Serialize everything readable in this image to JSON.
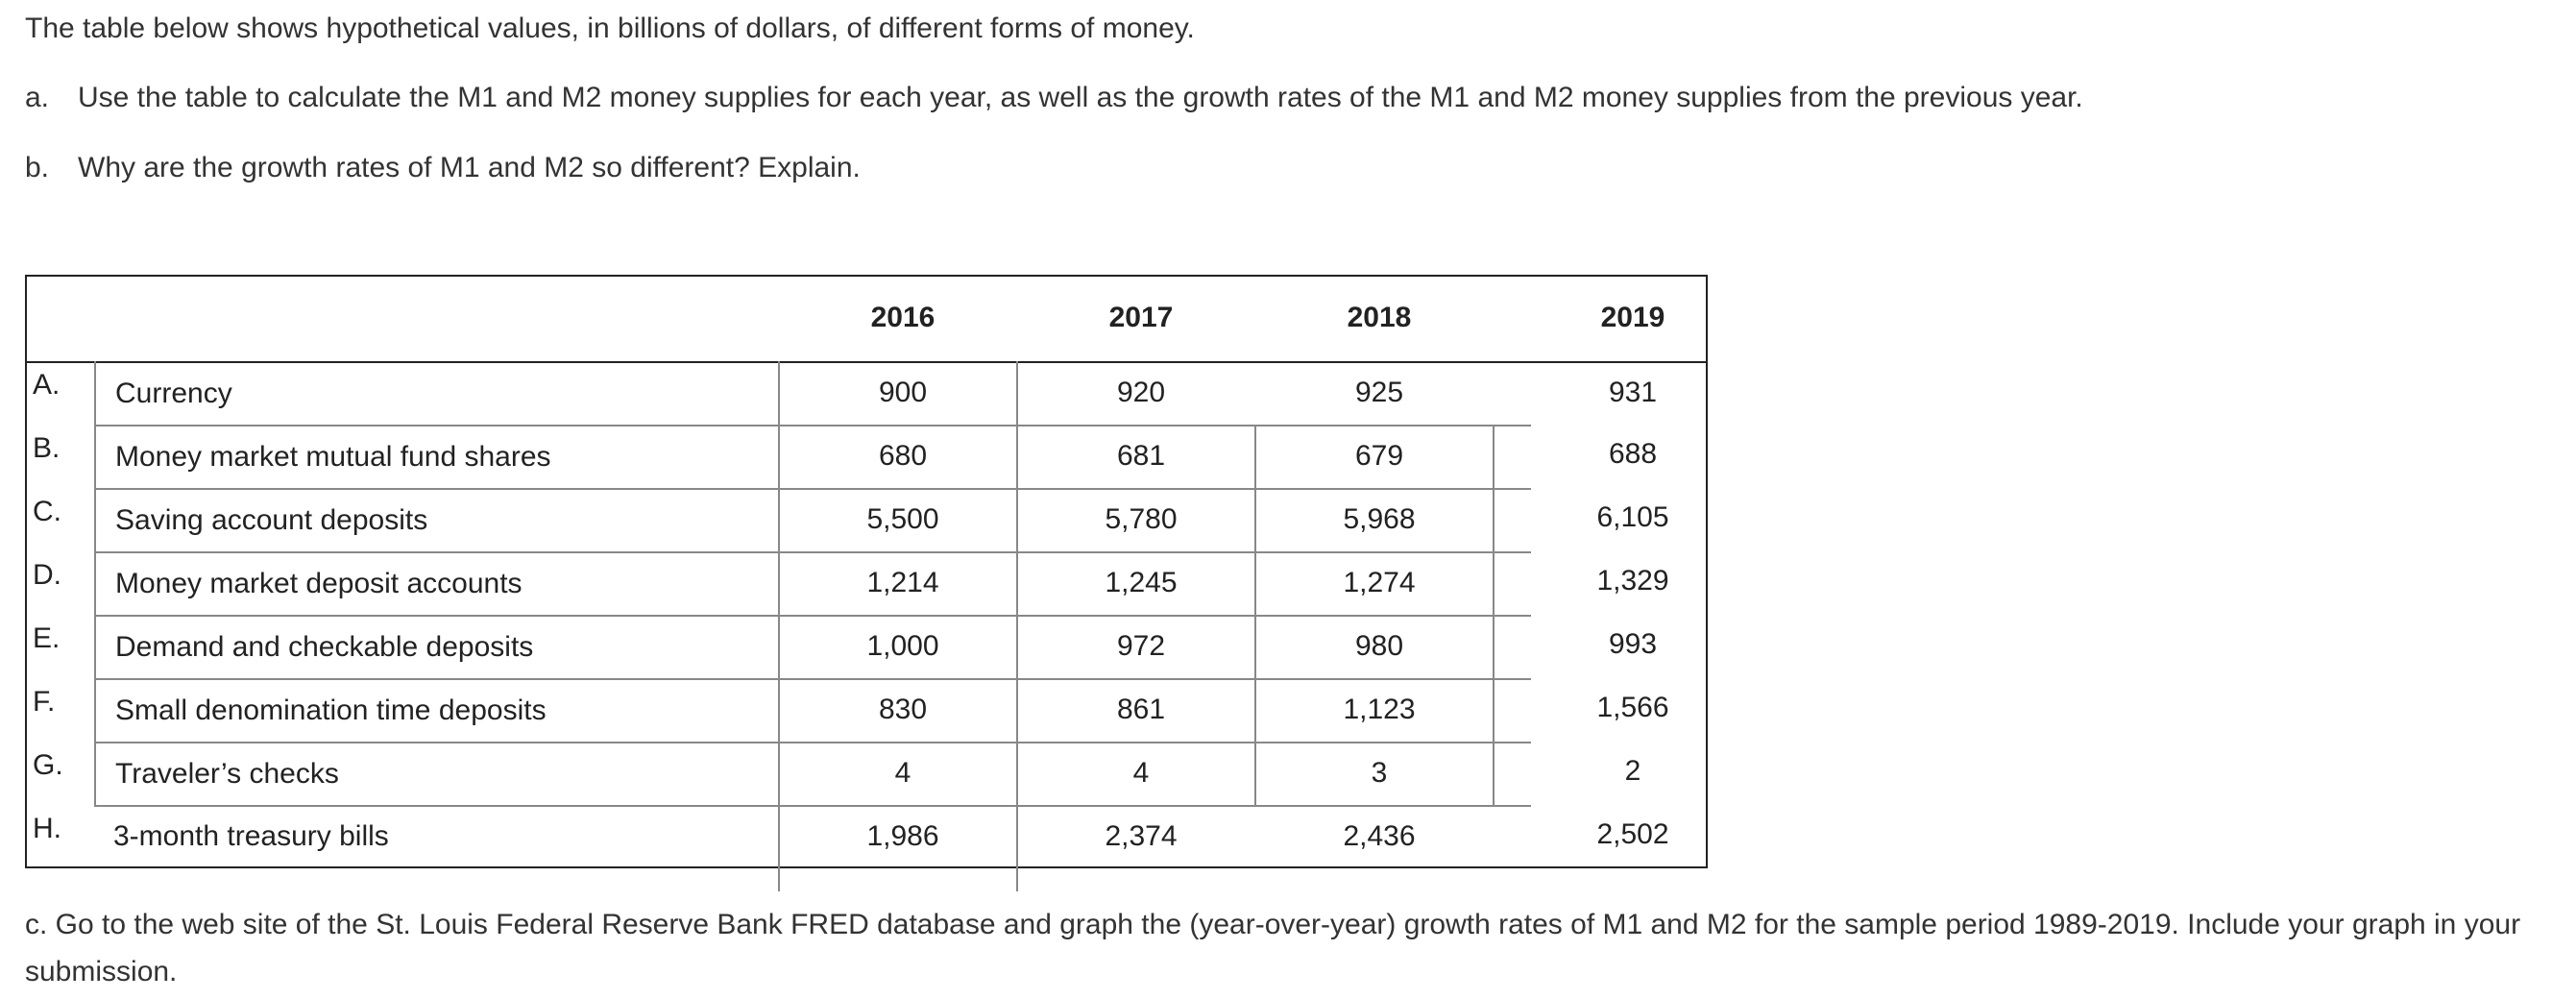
{
  "intro": "The table below shows hypothetical values, in billions of dollars, of different forms of money.",
  "questions": [
    {
      "marker": "a.",
      "text": "Use the table to calculate the M1 and M2 money supplies for each year, as well as the growth rates of the M1 and M2 money supplies from the previous year."
    },
    {
      "marker": "b.",
      "text": "Why are the growth rates of M1 and M2 so different? Explain."
    }
  ],
  "table": {
    "years": [
      "2016",
      "2017",
      "2018",
      "2019"
    ],
    "rows": [
      {
        "letter": "A.",
        "label": "Currency",
        "values": [
          "900",
          "920",
          "925",
          "931"
        ]
      },
      {
        "letter": "B.",
        "label": "Money market mutual fund shares",
        "values": [
          "680",
          "681",
          "679",
          "688"
        ]
      },
      {
        "letter": "C.",
        "label": "Saving account deposits",
        "values": [
          "5,500",
          "5,780",
          "5,968",
          "6,105"
        ]
      },
      {
        "letter": "D.",
        "label": "Money market deposit accounts",
        "values": [
          "1,214",
          "1,245",
          "1,274",
          "1,329"
        ]
      },
      {
        "letter": "E.",
        "label": "Demand and checkable deposits",
        "values": [
          "1,000",
          "972",
          "980",
          "993"
        ]
      },
      {
        "letter": "F.",
        "label": "Small denomination time deposits",
        "values": [
          "830",
          "861",
          "1,123",
          "1,566"
        ]
      },
      {
        "letter": "G.",
        "label": "Traveler’s checks",
        "values": [
          "4",
          "4",
          "3",
          "2"
        ]
      },
      {
        "letter": "H.",
        "label": "3-month treasury bills",
        "values": [
          "1,986",
          "2,374",
          "2,436",
          "2,502"
        ]
      }
    ]
  },
  "question_c": "c. Go to the web site of the St. Louis Federal Reserve Bank FRED database and graph the (year-over-year) growth rates of M1 and M2 for the sample period 1989-2019. Include your graph in your submission."
}
